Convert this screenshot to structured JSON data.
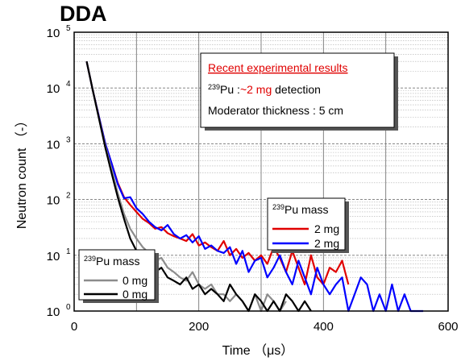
{
  "heading": "DDA",
  "chart_data": {
    "type": "line",
    "xlabel": "Time （μs）",
    "ylabel": "Neutron count （-）",
    "xlim": [
      0,
      600
    ],
    "ylim": [
      1,
      100000
    ],
    "yscale": "log",
    "grid": true,
    "x_ticks": [
      "0",
      "200",
      "400",
      "600"
    ],
    "y_tick_base": "10",
    "y_tick_exponents": [
      "0",
      "1",
      "2",
      "3",
      "4",
      "5"
    ],
    "annotation": {
      "title": "Recent experimental results",
      "line2_sup": "239",
      "line2_a": "Pu :",
      "line2_b": "~2 mg",
      "line2_c": " detection",
      "line3": "Moderator thickness : 5 cm"
    },
    "legends": [
      {
        "title_sup": "239",
        "title": "Pu mass",
        "placement": "center-right",
        "entries": [
          {
            "label": "2 mg",
            "color": "#e00000"
          },
          {
            "label": "2 mg",
            "color": "#0000ff"
          }
        ]
      },
      {
        "title_sup": "239",
        "title": "Pu mass",
        "placement": "bottom-left",
        "entries": [
          {
            "label": "0 mg",
            "color": "#8c8c8c"
          },
          {
            "label": "0 mg",
            "color": "#000000"
          }
        ]
      }
    ],
    "series": [
      {
        "color": "#e00000",
        "x": [
          20,
          30,
          40,
          50,
          60,
          70,
          80,
          90,
          100,
          110,
          120,
          130,
          140,
          150,
          160,
          170,
          180,
          190,
          200,
          210,
          220,
          230,
          240,
          250,
          260,
          270,
          280,
          290,
          300,
          310,
          320,
          330,
          340,
          350,
          360,
          370,
          380,
          390,
          400,
          410,
          420,
          430,
          440
        ],
        "y": [
          30000,
          9000,
          3000,
          1000,
          450,
          200,
          110,
          80,
          60,
          45,
          38,
          30,
          32,
          25,
          22,
          20,
          18,
          24,
          15,
          17,
          14,
          12,
          18,
          10,
          13,
          9,
          11,
          8,
          10,
          7,
          14,
          9,
          5,
          12,
          6,
          3,
          10,
          4,
          3,
          6,
          5,
          8,
          3
        ]
      },
      {
        "color": "#0000ff",
        "x": [
          20,
          30,
          40,
          50,
          60,
          70,
          80,
          90,
          100,
          110,
          120,
          130,
          140,
          150,
          160,
          170,
          180,
          190,
          200,
          210,
          220,
          230,
          240,
          250,
          260,
          270,
          280,
          290,
          300,
          310,
          320,
          330,
          340,
          350,
          360,
          370,
          380,
          390,
          400,
          410,
          420,
          430,
          440,
          450,
          460,
          470,
          480,
          490,
          500,
          510,
          520,
          530,
          540,
          550,
          560
        ],
        "y": [
          30000,
          9000,
          3000,
          1000,
          450,
          190,
          105,
          110,
          70,
          55,
          40,
          32,
          28,
          35,
          24,
          20,
          23,
          17,
          22,
          13,
          15,
          12,
          11,
          14,
          7,
          12,
          5,
          8,
          9,
          4,
          6,
          10,
          5,
          3,
          8,
          4,
          2,
          6,
          3,
          2,
          3,
          4,
          1,
          2,
          4,
          3,
          1,
          2,
          1,
          3,
          1,
          2,
          1,
          1,
          1
        ]
      },
      {
        "color": "#8c8c8c",
        "x": [
          20,
          30,
          40,
          50,
          60,
          70,
          80,
          90,
          100,
          110,
          120,
          130,
          140,
          150,
          160,
          170,
          180,
          190,
          200,
          210,
          220,
          230,
          240,
          250,
          260,
          270,
          280,
          290,
          300,
          310,
          320,
          330,
          340
        ],
        "y": [
          30000,
          9000,
          2800,
          900,
          350,
          130,
          55,
          30,
          20,
          14,
          11,
          8,
          9,
          6,
          5,
          4,
          3.5,
          5,
          3,
          2.5,
          3,
          2,
          2,
          1.5,
          2,
          1.5,
          1,
          2,
          1,
          2,
          1.5,
          1,
          1.5
        ]
      },
      {
        "color": "#000000",
        "x": [
          20,
          30,
          40,
          50,
          60,
          70,
          80,
          90,
          100,
          110,
          120,
          130,
          140,
          150,
          160,
          170,
          180,
          190,
          200,
          210,
          220,
          230,
          240,
          250,
          260,
          270,
          280,
          290,
          300,
          310,
          320,
          330,
          340,
          350,
          360,
          370,
          380
        ],
        "y": [
          30000,
          9000,
          2800,
          850,
          300,
          110,
          45,
          20,
          12,
          8,
          6,
          5,
          6,
          4,
          3.5,
          3,
          4,
          2.5,
          3,
          2,
          2.5,
          2,
          1.5,
          3,
          2,
          1.5,
          1,
          2,
          1.5,
          1,
          1.5,
          1,
          2,
          1.5,
          1,
          1.5,
          1
        ]
      }
    ]
  }
}
